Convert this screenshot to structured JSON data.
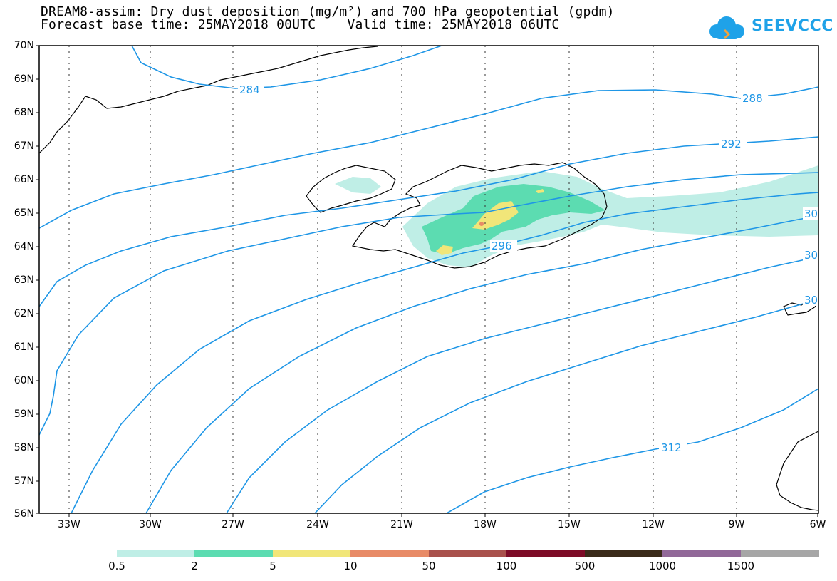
{
  "title": {
    "line1": "DREAM8-assim: Dry dust deposition (mg/m²) and 700 hPa geopotential (gpdm)",
    "line2": "Forecast base time: 25MAY2018 00UTC    Valid time: 25MAY2018 06UTC"
  },
  "logo": {
    "text": "SEEVCCC",
    "icon": "cloud-icon",
    "color": "#1fa2e8"
  },
  "map": {
    "lat_labels": [
      "70N",
      "69N",
      "68N",
      "67N",
      "66N",
      "65N",
      "64N",
      "63N",
      "62N",
      "61N",
      "60N",
      "59N",
      "58N",
      "57N",
      "56N"
    ],
    "lon_labels": [
      "33W",
      "30W",
      "27W",
      "24W",
      "21W",
      "18W",
      "15W",
      "12W",
      "9W",
      "6W"
    ],
    "lat_range": [
      56,
      70
    ],
    "lon_range": [
      -34.2,
      -6
    ],
    "grid": "dotted",
    "contour_color": "#1e96e6",
    "contour_labels": [
      {
        "text": "284"
      },
      {
        "text": "288"
      },
      {
        "text": "292"
      },
      {
        "text": "296"
      },
      {
        "text": "30"
      },
      {
        "text": "30"
      },
      {
        "text": "30"
      },
      {
        "text": "312"
      }
    ]
  },
  "colorbar": {
    "labels": [
      "0.5",
      "2",
      "5",
      "10",
      "50",
      "100",
      "500",
      "1000",
      "1500"
    ],
    "colors": [
      "#bfeee6",
      "#5cdcb1",
      "#f1e679",
      "#e88b67",
      "#a9514c",
      "#7d0b27",
      "#3a2a1a",
      "#916898",
      "#a6a6a6"
    ]
  }
}
